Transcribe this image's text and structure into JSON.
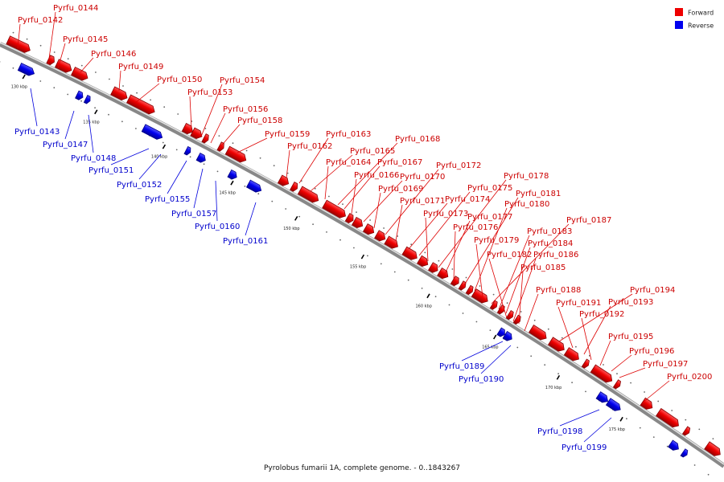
{
  "caption": "Pyrolobus fumarii 1A, complete genome. - 0..1843267",
  "legend": [
    {
      "label": "Forward",
      "color": "#ee0000"
    },
    {
      "label": "Reverse",
      "color": "#0000ee"
    }
  ],
  "ticks": [
    "130 kbp",
    "135 kbp",
    "140 kbp",
    "145 kbp",
    "150 kbp",
    "155 kbp",
    "160 kbp",
    "165 kbp",
    "170 kbp",
    "175 kbp"
  ],
  "forward_genes": [
    "Pyrfu_0142",
    "Pyrfu_0144",
    "Pyrfu_0145",
    "Pyrfu_0146",
    "Pyrfu_0149",
    "Pyrfu_0150",
    "Pyrfu_0153",
    "Pyrfu_0154",
    "Pyrfu_0156",
    "Pyrfu_0158",
    "Pyrfu_0159",
    "Pyrfu_0162",
    "Pyrfu_0163",
    "Pyrfu_0165",
    "Pyrfu_0164",
    "Pyrfu_0168",
    "Pyrfu_0167",
    "Pyrfu_0166",
    "Pyrfu_0170",
    "Pyrfu_0169",
    "Pyrfu_0172",
    "Pyrfu_0171",
    "Pyrfu_0174",
    "Pyrfu_0175",
    "Pyrfu_0173",
    "Pyrfu_0178",
    "Pyrfu_0177",
    "Pyrfu_0176",
    "Pyrfu_0181",
    "Pyrfu_0180",
    "Pyrfu_0179",
    "Pyrfu_0187",
    "Pyrfu_0183",
    "Pyrfu_0184",
    "Pyrfu_0182",
    "Pyrfu_0186",
    "Pyrfu_0185",
    "Pyrfu_0188",
    "Pyrfu_0194",
    "Pyrfu_0191",
    "Pyrfu_0193",
    "Pyrfu_0192",
    "Pyrfu_0195",
    "Pyrfu_0196",
    "Pyrfu_0197",
    "Pyrfu_0200"
  ],
  "reverse_genes": [
    "Pyrfu_0143",
    "Pyrfu_0147",
    "Pyrfu_0148",
    "Pyrfu_0151",
    "Pyrfu_0152",
    "Pyrfu_0155",
    "Pyrfu_0157",
    "Pyrfu_0160",
    "Pyrfu_0161",
    "Pyrfu_0189",
    "Pyrfu_0190",
    "Pyrfu_0198",
    "Pyrfu_0199"
  ]
}
